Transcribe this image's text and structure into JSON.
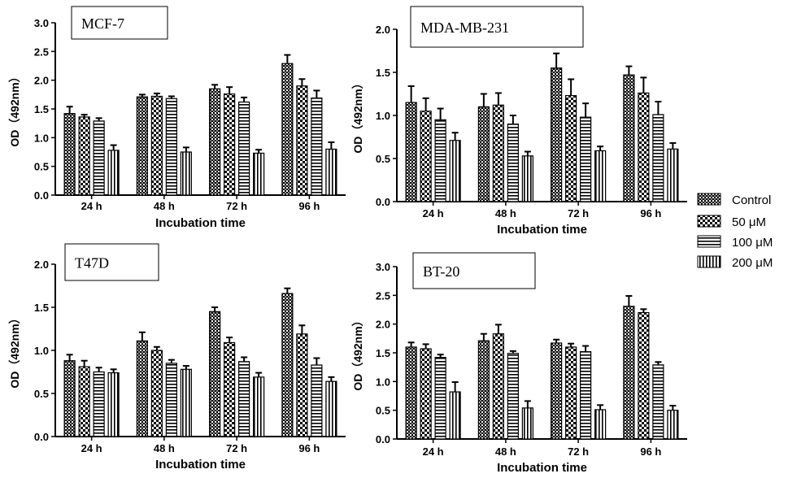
{
  "legend": {
    "entries": [
      "Control",
      "50 μM",
      "100 μM",
      "200 μM"
    ],
    "placement": "right"
  },
  "chart_data": [
    {
      "type": "bar",
      "title": "MCF-7",
      "ylabel": "OD（492nm）",
      "xlabel": "Incubation time",
      "categories": [
        "24 h",
        "48 h",
        "72 h",
        "96 h"
      ],
      "ylim": [
        0,
        3.0
      ],
      "yticks": [
        "0.0",
        "0.5",
        "1.0",
        "1.5",
        "2.0",
        "2.5",
        "3.0"
      ],
      "series": [
        {
          "name": "Control",
          "values": [
            1.42,
            1.71,
            1.85,
            2.29
          ],
          "errors": [
            0.12,
            0.04,
            0.07,
            0.15
          ]
        },
        {
          "name": "50 μM",
          "values": [
            1.36,
            1.72,
            1.76,
            1.9
          ],
          "errors": [
            0.04,
            0.05,
            0.12,
            0.12
          ]
        },
        {
          "name": "100 μM",
          "values": [
            1.29,
            1.68,
            1.62,
            1.69
          ],
          "errors": [
            0.05,
            0.04,
            0.08,
            0.13
          ]
        },
        {
          "name": "200 μM",
          "values": [
            0.78,
            0.75,
            0.73,
            0.8
          ],
          "errors": [
            0.09,
            0.08,
            0.06,
            0.12
          ]
        }
      ]
    },
    {
      "type": "bar",
      "title": "MDA-MB-231",
      "ylabel": "OD（492nm）",
      "xlabel": "Incubation time",
      "categories": [
        "24 h",
        "48 h",
        "72 h",
        "96 h"
      ],
      "ylim": [
        0,
        2.0
      ],
      "yticks": [
        "0.0",
        "0.5",
        "1.0",
        "1.5",
        "2.0"
      ],
      "series": [
        {
          "name": "Control",
          "values": [
            1.15,
            1.1,
            1.55,
            1.47
          ],
          "errors": [
            0.19,
            0.15,
            0.17,
            0.1
          ]
        },
        {
          "name": "50 μM",
          "values": [
            1.05,
            1.12,
            1.23,
            1.26
          ],
          "errors": [
            0.15,
            0.14,
            0.19,
            0.18
          ]
        },
        {
          "name": "100 μM",
          "values": [
            0.95,
            0.9,
            0.98,
            1.01
          ],
          "errors": [
            0.13,
            0.1,
            0.16,
            0.15
          ]
        },
        {
          "name": "200 μM",
          "values": [
            0.71,
            0.53,
            0.59,
            0.61
          ],
          "errors": [
            0.09,
            0.05,
            0.05,
            0.07
          ]
        }
      ]
    },
    {
      "type": "bar",
      "title": "T47D",
      "ylabel": "OD（492nm）",
      "xlabel": "Incubation time",
      "categories": [
        "24 h",
        "48 h",
        "72 h",
        "96 h"
      ],
      "ylim": [
        0,
        2.0
      ],
      "yticks": [
        "0.0",
        "0.5",
        "1.0",
        "1.5",
        "2.0"
      ],
      "series": [
        {
          "name": "Control",
          "values": [
            0.88,
            1.11,
            1.45,
            1.66
          ],
          "errors": [
            0.07,
            0.1,
            0.05,
            0.06
          ]
        },
        {
          "name": "50 μM",
          "values": [
            0.81,
            1.0,
            1.09,
            1.19
          ],
          "errors": [
            0.07,
            0.04,
            0.06,
            0.1
          ]
        },
        {
          "name": "100 μM",
          "values": [
            0.75,
            0.85,
            0.87,
            0.83
          ],
          "errors": [
            0.05,
            0.04,
            0.05,
            0.08
          ]
        },
        {
          "name": "200 μM",
          "values": [
            0.74,
            0.78,
            0.69,
            0.64
          ],
          "errors": [
            0.04,
            0.04,
            0.05,
            0.05
          ]
        }
      ]
    },
    {
      "type": "bar",
      "title": "BT-20",
      "ylabel": "OD（492nm）",
      "xlabel": "Incubation time",
      "categories": [
        "24 h",
        "48 h",
        "72 h",
        "96 h"
      ],
      "ylim": [
        0,
        3.0
      ],
      "yticks": [
        "0.0",
        "0.5",
        "1.0",
        "1.5",
        "2.0",
        "2.5",
        "3.0"
      ],
      "series": [
        {
          "name": "Control",
          "values": [
            1.6,
            1.71,
            1.67,
            2.31
          ],
          "errors": [
            0.08,
            0.12,
            0.06,
            0.18
          ]
        },
        {
          "name": "50 μM",
          "values": [
            1.57,
            1.83,
            1.6,
            2.2
          ],
          "errors": [
            0.08,
            0.16,
            0.06,
            0.06
          ]
        },
        {
          "name": "100 μM",
          "values": [
            1.42,
            1.49,
            1.52,
            1.29
          ],
          "errors": [
            0.05,
            0.04,
            0.1,
            0.05
          ]
        },
        {
          "name": "200 μM",
          "values": [
            0.82,
            0.54,
            0.51,
            0.5
          ],
          "errors": [
            0.17,
            0.12,
            0.08,
            0.08
          ]
        }
      ]
    }
  ]
}
